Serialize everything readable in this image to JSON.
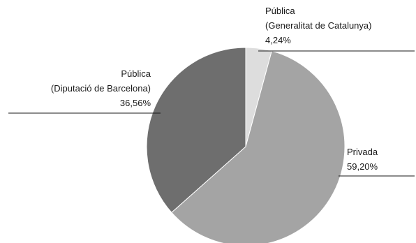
{
  "chart_data": {
    "type": "pie",
    "title": "",
    "start": "12 o'clock, clockwise",
    "slices": [
      {
        "name_lines": [
          "Pública",
          "(Generalitat de Catalunya)"
        ],
        "label": "4,24%",
        "value": 4.24,
        "color": "#dddddd"
      },
      {
        "name_lines": [
          "Privada"
        ],
        "label": "59,20%",
        "value": 59.2,
        "color": "#a4a4a4"
      },
      {
        "name_lines": [
          "Pública",
          "(Diputació de Barcelona)"
        ],
        "label": "36,56%",
        "value": 36.56,
        "color": "#6e6e6e"
      }
    ],
    "legend": "none (leader-line callouts)"
  }
}
